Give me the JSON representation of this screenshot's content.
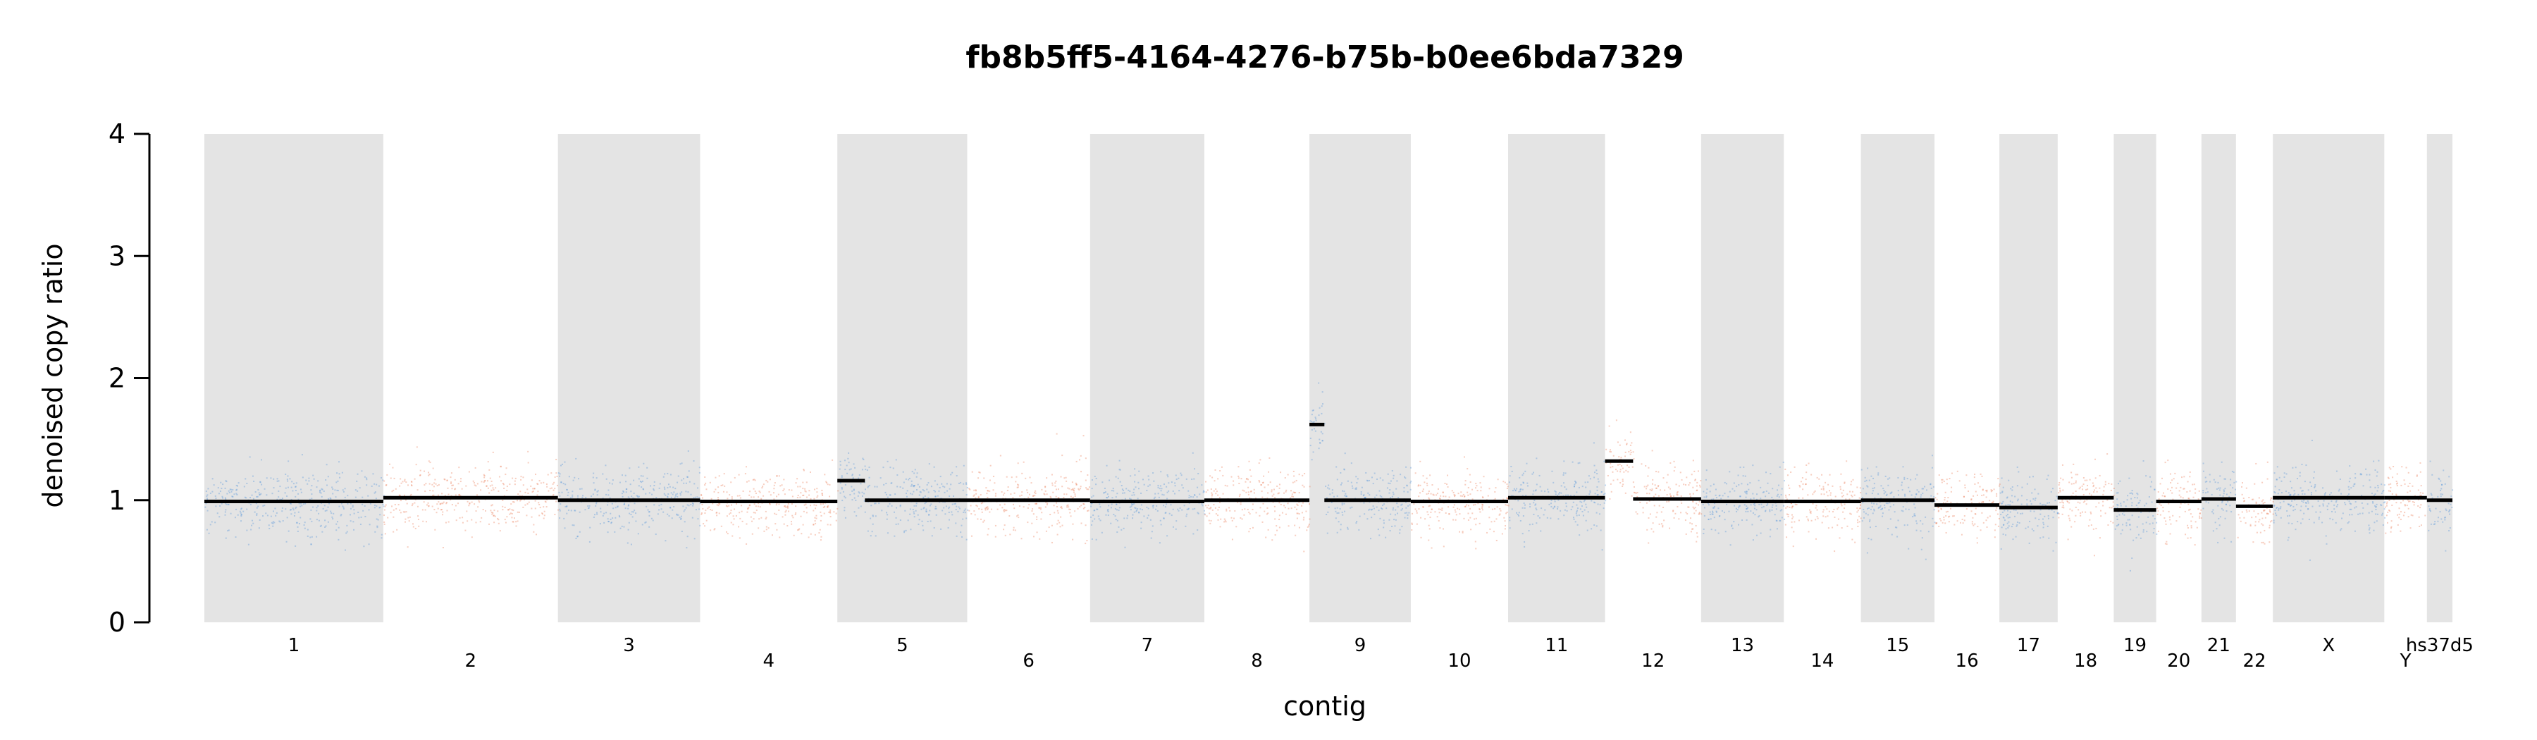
{
  "chart_data": {
    "type": "scatter",
    "title": "fb8b5ff5-4164-4276-b75b-b0ee6bda7329",
    "xlabel": "contig",
    "ylabel": "denoised copy ratio",
    "ylim": [
      0,
      4
    ],
    "yticks": [
      0,
      1,
      2,
      3,
      4
    ],
    "grid": false,
    "legend": "none",
    "colors": {
      "shaded_band": "#e4e4e4",
      "points_shaded_contigs": "#4a90d9",
      "points_unshaded_contigs": "#e8734a",
      "segment": "#000000"
    },
    "contigs": [
      {
        "name": "1",
        "start": 0,
        "end": 249.25,
        "shaded": true
      },
      {
        "name": "2",
        "start": 249.25,
        "end": 492.45,
        "shaded": false
      },
      {
        "name": "3",
        "start": 492.45,
        "end": 690.47,
        "shaded": true
      },
      {
        "name": "4",
        "start": 690.47,
        "end": 881.63,
        "shaded": false
      },
      {
        "name": "5",
        "start": 881.63,
        "end": 1062.55,
        "shaded": true
      },
      {
        "name": "6",
        "start": 1062.55,
        "end": 1233.67,
        "shaded": false
      },
      {
        "name": "7",
        "start": 1233.67,
        "end": 1392.8,
        "shaded": true
      },
      {
        "name": "8",
        "start": 1392.8,
        "end": 1539.16,
        "shaded": false
      },
      {
        "name": "9",
        "start": 1539.16,
        "end": 1680.37,
        "shaded": true
      },
      {
        "name": "10",
        "start": 1680.37,
        "end": 1815.9,
        "shaded": false
      },
      {
        "name": "11",
        "start": 1815.9,
        "end": 1950.9,
        "shaded": true
      },
      {
        "name": "12",
        "start": 1950.9,
        "end": 2084.75,
        "shaded": false
      },
      {
        "name": "13",
        "start": 2084.75,
        "end": 2199.92,
        "shaded": true
      },
      {
        "name": "14",
        "start": 2199.92,
        "end": 2307.27,
        "shaded": false
      },
      {
        "name": "15",
        "start": 2307.27,
        "end": 2409.8,
        "shaded": true
      },
      {
        "name": "16",
        "start": 2409.8,
        "end": 2500.16,
        "shaded": false
      },
      {
        "name": "17",
        "start": 2500.16,
        "end": 2581.36,
        "shaded": true
      },
      {
        "name": "18",
        "start": 2581.36,
        "end": 2659.44,
        "shaded": false
      },
      {
        "name": "19",
        "start": 2659.44,
        "end": 2718.57,
        "shaded": true
      },
      {
        "name": "20",
        "start": 2718.57,
        "end": 2781.6,
        "shaded": false
      },
      {
        "name": "21",
        "start": 2781.6,
        "end": 2829.73,
        "shaded": true
      },
      {
        "name": "22",
        "start": 2829.73,
        "end": 2881.03,
        "shaded": false
      },
      {
        "name": "X",
        "start": 2881.03,
        "end": 3036.3,
        "shaded": true
      },
      {
        "name": "Y",
        "start": 3036.3,
        "end": 3095.67,
        "shaded": false
      },
      {
        "name": "hs37d5",
        "start": 3095.67,
        "end": 3131.2,
        "shaded": true
      }
    ],
    "segments": [
      {
        "contig": "1",
        "start": 0,
        "end": 249.25,
        "copy_ratio": 0.99
      },
      {
        "contig": "2",
        "start": 249.25,
        "end": 492.45,
        "copy_ratio": 1.02
      },
      {
        "contig": "3",
        "start": 492.45,
        "end": 690.47,
        "copy_ratio": 1.0
      },
      {
        "contig": "4",
        "start": 690.47,
        "end": 881.63,
        "copy_ratio": 0.99
      },
      {
        "contig": "5",
        "start": 881.63,
        "end": 920,
        "copy_ratio": 1.16
      },
      {
        "contig": "5",
        "start": 920,
        "end": 1062.55,
        "copy_ratio": 1.0
      },
      {
        "contig": "6",
        "start": 1062.55,
        "end": 1233.67,
        "copy_ratio": 1.0
      },
      {
        "contig": "7",
        "start": 1233.67,
        "end": 1392.8,
        "copy_ratio": 0.99
      },
      {
        "contig": "8",
        "start": 1392.8,
        "end": 1539.16,
        "copy_ratio": 1.0
      },
      {
        "contig": "9",
        "start": 1539.16,
        "end": 1560,
        "copy_ratio": 1.62
      },
      {
        "contig": "9",
        "start": 1560,
        "end": 1680.37,
        "copy_ratio": 1.0
      },
      {
        "contig": "10",
        "start": 1680.37,
        "end": 1815.9,
        "copy_ratio": 0.99
      },
      {
        "contig": "11",
        "start": 1815.9,
        "end": 1950.9,
        "copy_ratio": 1.02
      },
      {
        "contig": "12",
        "start": 1950.9,
        "end": 1990,
        "copy_ratio": 1.32
      },
      {
        "contig": "12",
        "start": 1990,
        "end": 2084.75,
        "copy_ratio": 1.01
      },
      {
        "contig": "13",
        "start": 2084.75,
        "end": 2199.92,
        "copy_ratio": 0.99
      },
      {
        "contig": "14",
        "start": 2199.92,
        "end": 2307.27,
        "copy_ratio": 0.99
      },
      {
        "contig": "15",
        "start": 2307.27,
        "end": 2409.8,
        "copy_ratio": 1.0
      },
      {
        "contig": "16",
        "start": 2409.8,
        "end": 2500.16,
        "copy_ratio": 0.96
      },
      {
        "contig": "17",
        "start": 2500.16,
        "end": 2581.36,
        "copy_ratio": 0.94
      },
      {
        "contig": "18",
        "start": 2581.36,
        "end": 2659.44,
        "copy_ratio": 1.02
      },
      {
        "contig": "19",
        "start": 2659.44,
        "end": 2718.57,
        "copy_ratio": 0.92
      },
      {
        "contig": "20",
        "start": 2718.57,
        "end": 2781.6,
        "copy_ratio": 0.99
      },
      {
        "contig": "21",
        "start": 2781.6,
        "end": 2829.73,
        "copy_ratio": 1.01
      },
      {
        "contig": "22",
        "start": 2829.73,
        "end": 2881.03,
        "copy_ratio": 0.95
      },
      {
        "contig": "X",
        "start": 2881.03,
        "end": 3036.3,
        "copy_ratio": 1.02
      },
      {
        "contig": "Y",
        "start": 3036.3,
        "end": 3095.67,
        "copy_ratio": 1.02
      },
      {
        "contig": "hs37d5",
        "start": 3095.67,
        "end": 3131.2,
        "copy_ratio": 1.0
      }
    ]
  }
}
